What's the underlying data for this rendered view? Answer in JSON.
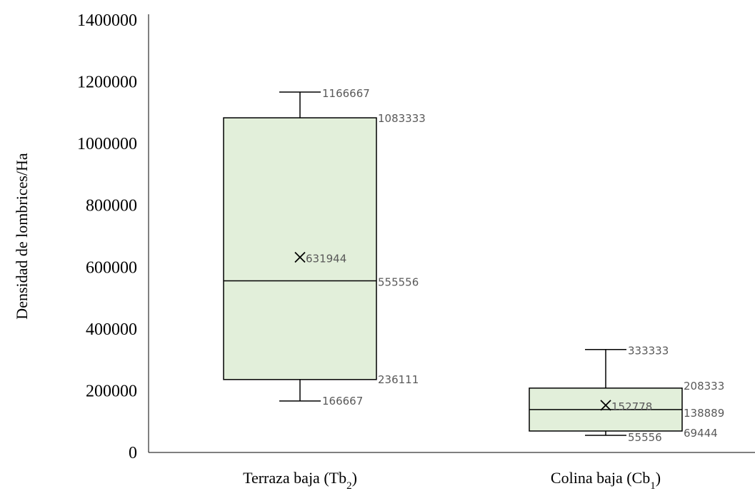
{
  "chart_data": {
    "type": "box",
    "title": "",
    "ylabel": "Densidad de lombrices/Ha",
    "xlabel": "",
    "ylim": [
      0,
      1400000
    ],
    "yticks": [
      0,
      200000,
      400000,
      600000,
      800000,
      1000000,
      1200000,
      1400000
    ],
    "grid": false,
    "colors": {
      "box_fill": "#e2efda",
      "stroke": "#000000",
      "label": "#595959"
    },
    "boxes": [
      {
        "category": "Terraza baja (Tb",
        "sub": "2",
        "suffix": ")",
        "min": 166667,
        "q1": 236111,
        "median": 555556,
        "mean": 631944,
        "q3": 1083333,
        "max": 1166667,
        "labels": {
          "min": "166667",
          "q1": "236111",
          "median": "555556",
          "mean": "631944",
          "q3": "1083333",
          "max": "1166667"
        }
      },
      {
        "category": "Colina baja (Cb",
        "sub": "1",
        "suffix": ")",
        "min": 55556,
        "q1": 69444,
        "median": 138889,
        "mean": 152778,
        "q3": 208333,
        "max": 333333,
        "labels": {
          "min": "55556",
          "q1": "69444",
          "median": "138889",
          "mean": "152778",
          "q3": "208333",
          "max": "333333"
        }
      }
    ]
  }
}
